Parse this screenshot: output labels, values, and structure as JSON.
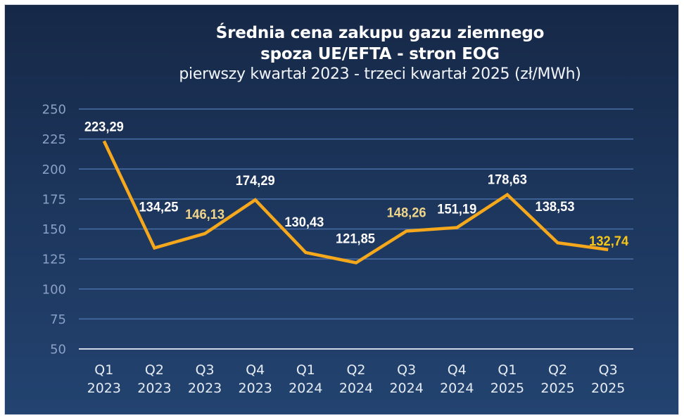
{
  "title": {
    "line1": "Średnia cena zakupu gazu ziemnego",
    "line2": "spoza UE/EFTA - stron EOG",
    "line3": "pierwszy kwartał 2023 - trzeci kwartał 2025 (zł/MWh)"
  },
  "colors": {
    "background_top": "#162847",
    "background_bottom": "#234370",
    "gridline": "#4a6fa8",
    "baseline": "#d0d8e6",
    "line": "#f5a81c",
    "ytick": "#8aa0c4",
    "xtick": "#e6ecf5",
    "label_default": "#ffffff",
    "label_cream": "#f0d58a",
    "label_gold": "#f5c518"
  },
  "chart_data": {
    "type": "line",
    "title": "Średnia cena zakupu gazu ziemnego spoza UE/EFTA - stron EOG",
    "subtitle": "pierwszy kwartał 2023 - trzeci kwartał 2025 (zł/MWh)",
    "xlabel": "",
    "ylabel": "",
    "ylim": [
      50,
      250
    ],
    "yticks": [
      50,
      75,
      100,
      125,
      150,
      175,
      200,
      225,
      250
    ],
    "grid": true,
    "legend": null,
    "categories": [
      {
        "q": "Q1",
        "year": "2023"
      },
      {
        "q": "Q2",
        "year": "2023"
      },
      {
        "q": "Q3",
        "year": "2023"
      },
      {
        "q": "Q4",
        "year": "2023"
      },
      {
        "q": "Q1",
        "year": "2024"
      },
      {
        "q": "Q2",
        "year": "2024"
      },
      {
        "q": "Q3",
        "year": "2024"
      },
      {
        "q": "Q4",
        "year": "2024"
      },
      {
        "q": "Q1",
        "year": "2025"
      },
      {
        "q": "Q2",
        "year": "2025"
      },
      {
        "q": "Q3",
        "year": "2025"
      }
    ],
    "series": [
      {
        "name": "Średnia cena (zł/MWh)",
        "values": [
          223.29,
          134.25,
          146.13,
          174.29,
          130.43,
          121.85,
          148.26,
          151.19,
          178.63,
          138.53,
          132.74
        ],
        "labels": [
          "223,29",
          "134,25",
          "146,13",
          "174,29",
          "130,43",
          "121,85",
          "148,26",
          "151,19",
          "178,63",
          "138,53",
          "132,74"
        ],
        "label_colors": [
          "default",
          "default",
          "cream",
          "default",
          "default",
          "default",
          "cream",
          "default",
          "default",
          "default",
          "gold"
        ]
      }
    ]
  }
}
